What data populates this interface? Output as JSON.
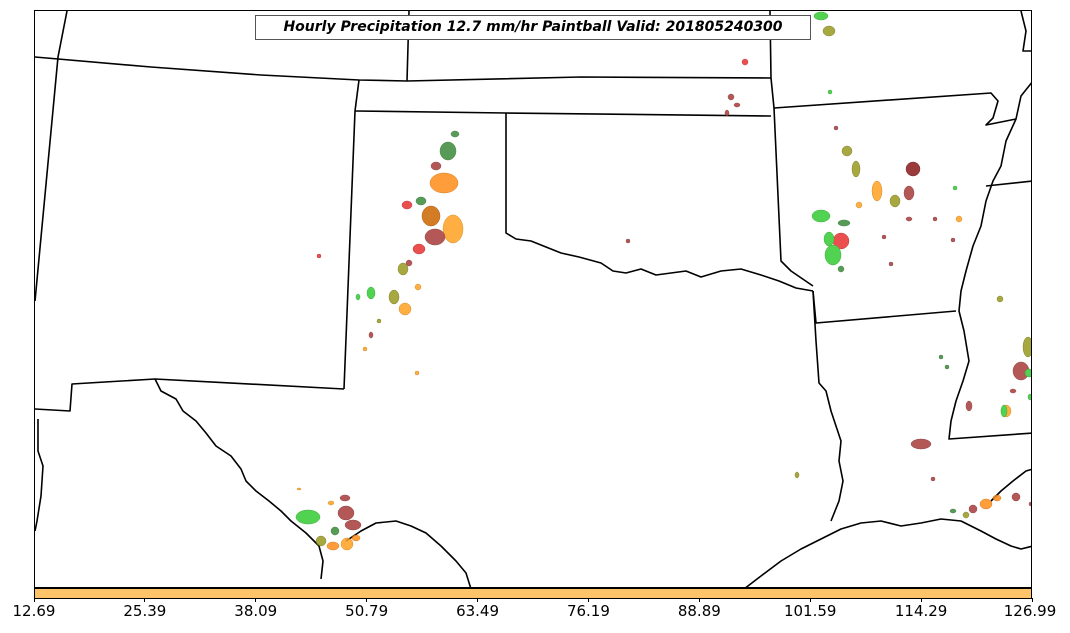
{
  "title": "Hourly Precipitation 12.7 mm/hr Paintball Valid: 201805240300",
  "colorbar": {
    "color": "#ffc46a",
    "ticks": [
      "12.69",
      "25.39",
      "38.09",
      "50.79",
      "63.49",
      "76.19",
      "88.89",
      "101.59",
      "114.29",
      "126.99"
    ]
  },
  "colors": {
    "boundary": "#000000",
    "paintball_members": [
      "#3a8a3a",
      "#33cc33",
      "#ff8c1a",
      "#ffa020",
      "#e83030",
      "#a83a3a",
      "#8b1a1a",
      "#9a9a20",
      "#cc6600"
    ]
  }
}
